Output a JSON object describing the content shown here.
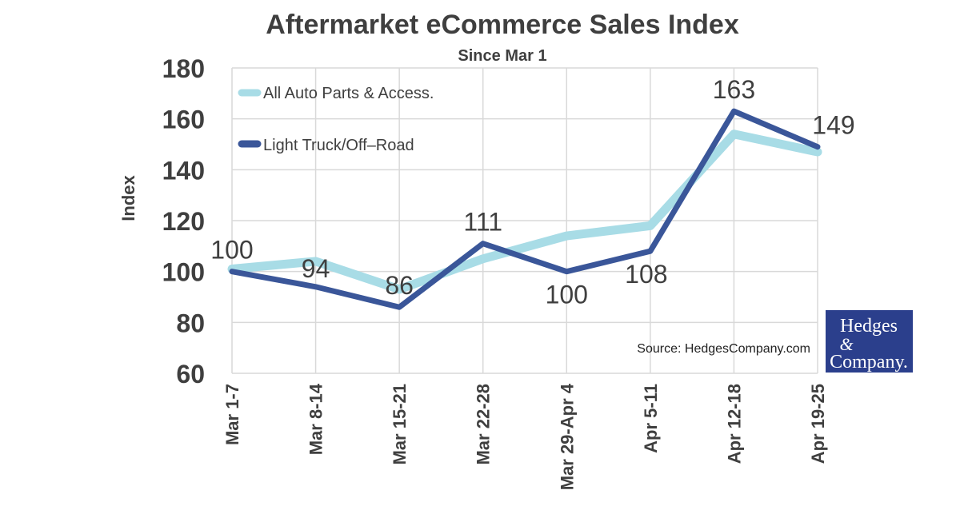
{
  "chart_data": {
    "type": "line",
    "title": "Aftermarket eCommerce Sales Index",
    "subtitle": "Since Mar 1",
    "ylabel": "Index",
    "xlabel": "",
    "ylim": [
      60,
      180
    ],
    "yticks": [
      60,
      80,
      100,
      120,
      140,
      160,
      180
    ],
    "categories": [
      "Mar 1-7",
      "Mar 8-14",
      "Mar 15-21",
      "Mar 22-28",
      "Mar 29-Apr 4",
      "Apr 5-11",
      "Apr 12-18",
      "Apr 19-25"
    ],
    "grid": true,
    "legend_position": "top-left",
    "series": [
      {
        "name": "All Auto Parts & Access.",
        "color": "#a8dce6",
        "values": [
          101,
          104,
          93,
          105,
          114,
          118,
          154,
          147
        ],
        "data_labels": [
          null,
          null,
          null,
          null,
          null,
          null,
          null,
          null
        ]
      },
      {
        "name": "Light Truck/Off–Road",
        "color": "#3a5699",
        "values": [
          100,
          94,
          86,
          111,
          100,
          108,
          163,
          149
        ],
        "data_labels": [
          "100",
          "94",
          "86",
          "111",
          "100",
          "108",
          "163",
          "149"
        ]
      }
    ],
    "source": "Source: HedgesCompany.com"
  },
  "logo": {
    "line1": "Hedges",
    "line2": "&",
    "line3": "Company.",
    "bg_color": "#2b3f8c"
  }
}
